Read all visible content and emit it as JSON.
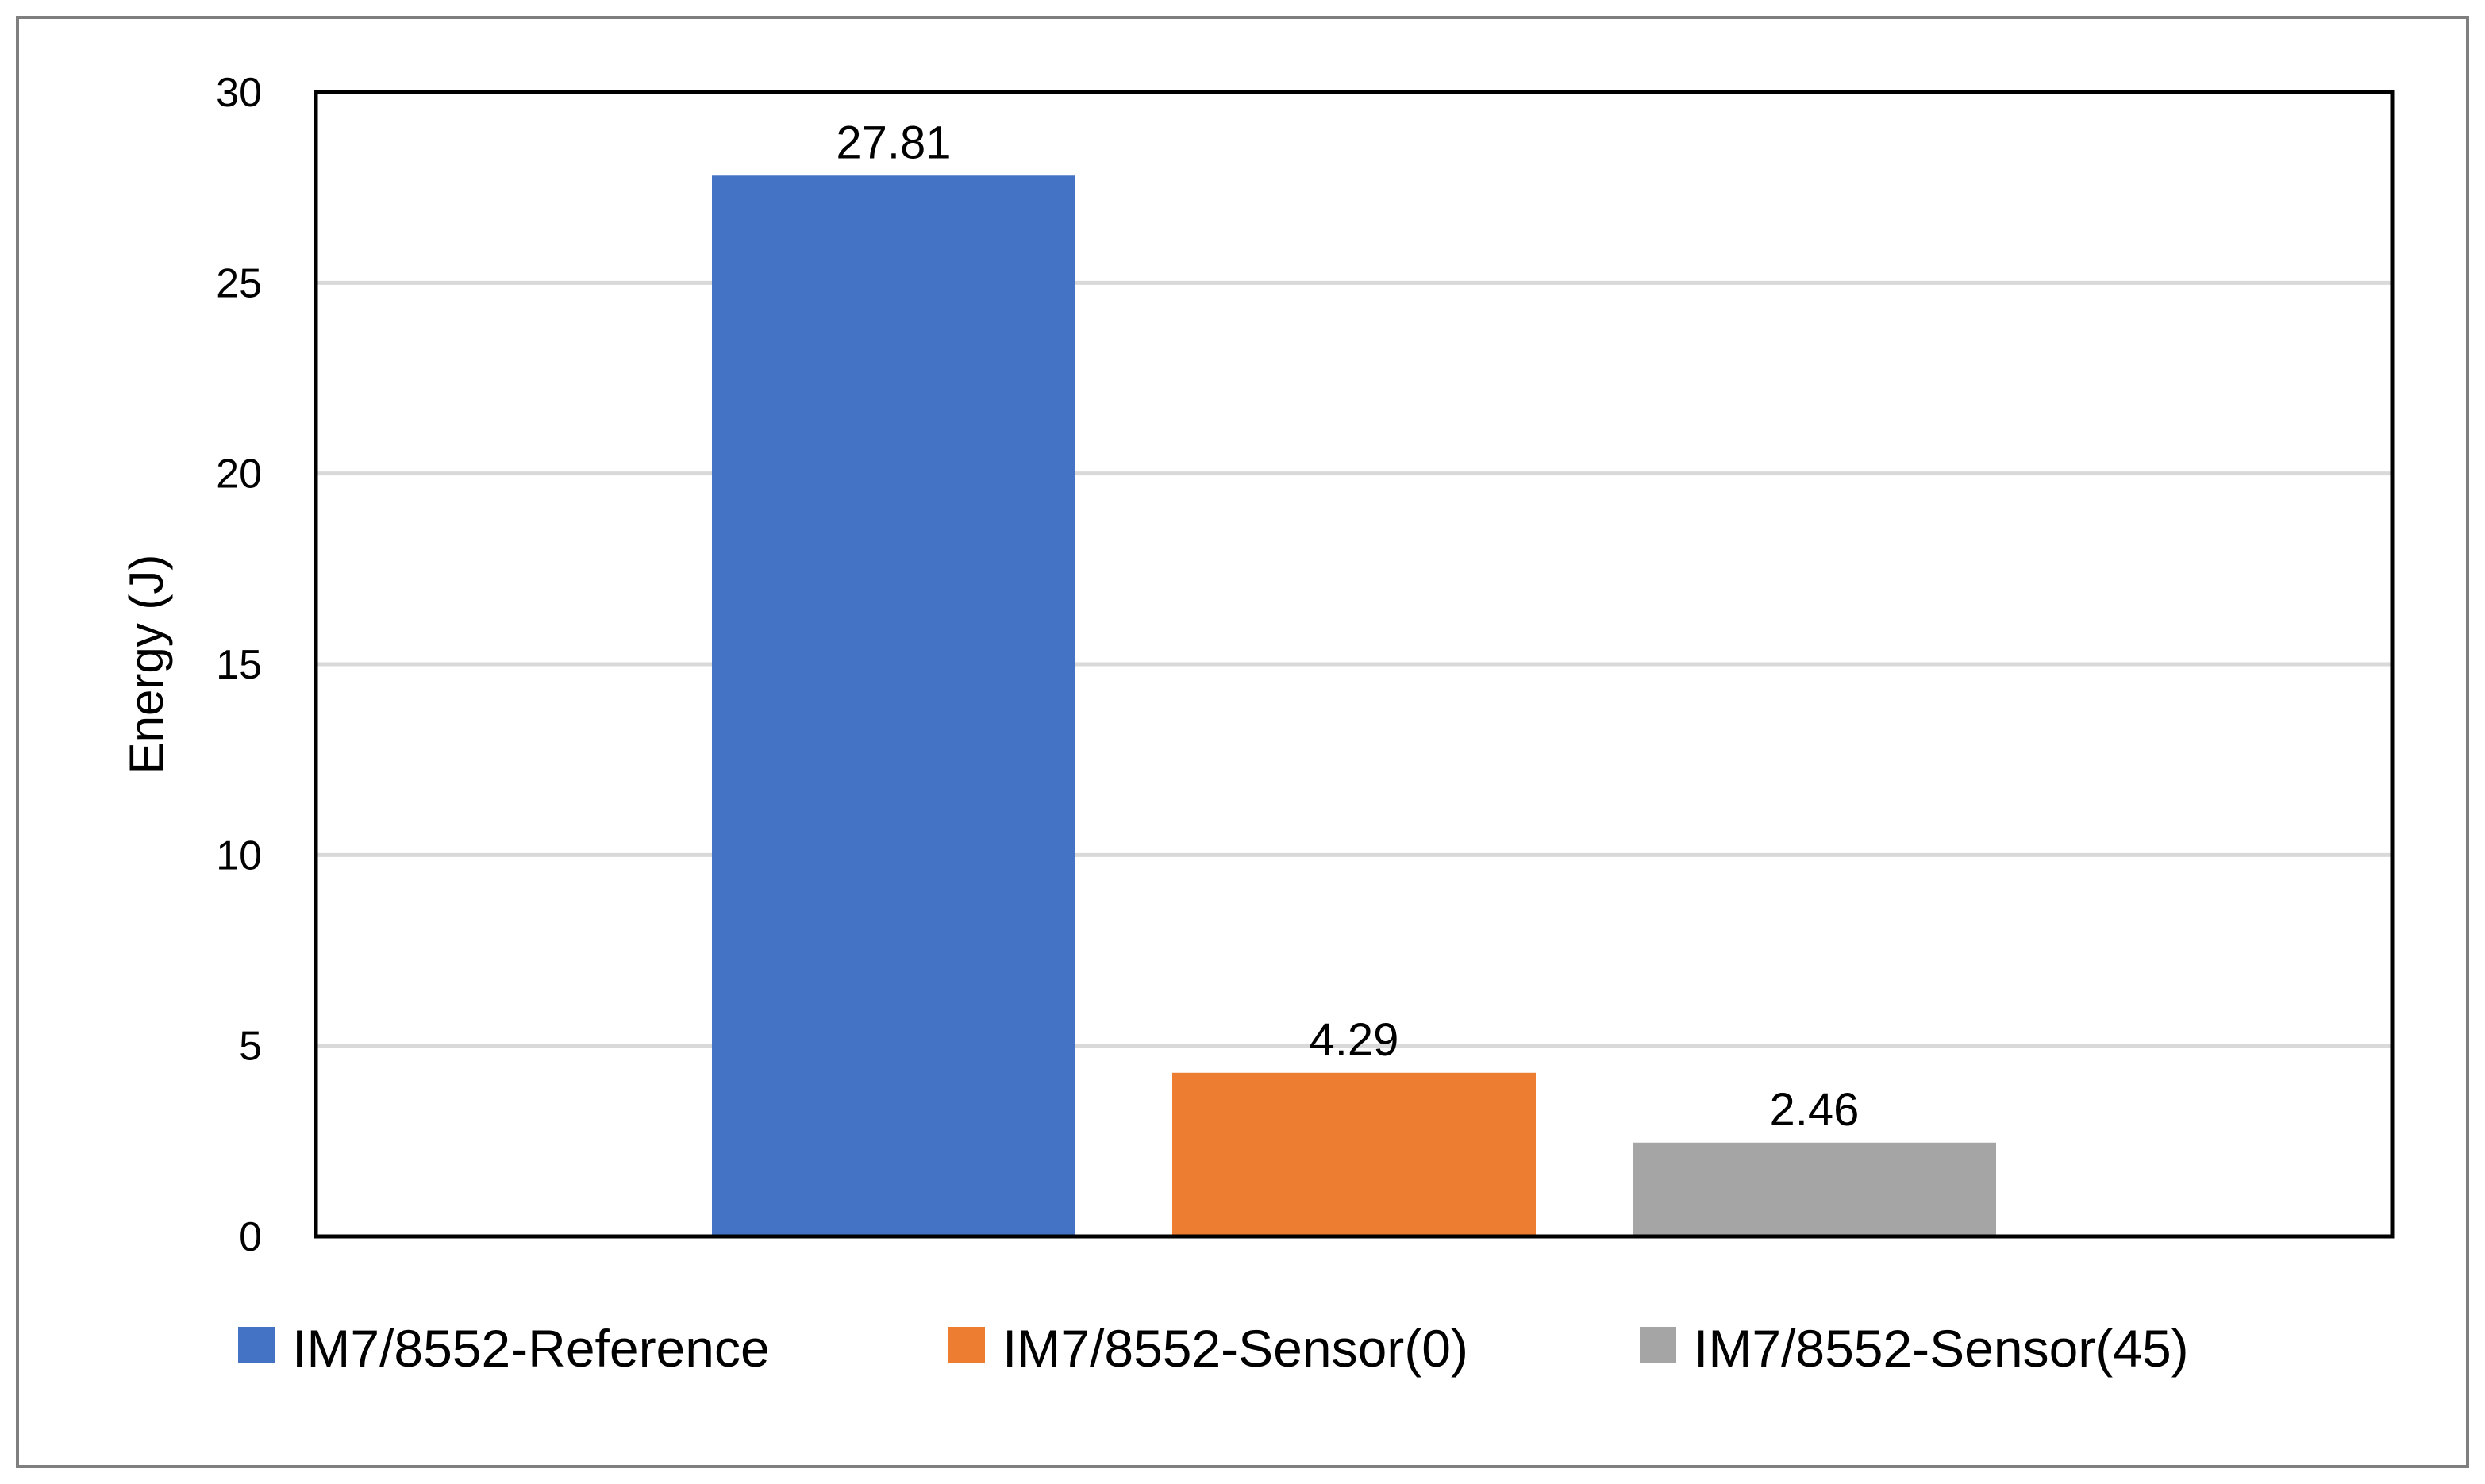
{
  "chart_data": {
    "type": "bar",
    "title": "",
    "xlabel": "",
    "ylabel": "Energy (J)",
    "ylim": [
      0,
      30
    ],
    "yticks": [
      0,
      5,
      10,
      15,
      20,
      25,
      30
    ],
    "grid": true,
    "legend": "bottom",
    "series": [
      {
        "name": "IM7/8552-Reference",
        "value": 27.81,
        "label": "27.81",
        "color": "#4472C4"
      },
      {
        "name": "IM7/8552-Sensor(0)",
        "value": 4.29,
        "label": "4.29",
        "color": "#ED7D31"
      },
      {
        "name": "IM7/8552-Sensor(45)",
        "value": 2.46,
        "label": "2.46",
        "color": "#A5A5A5"
      }
    ]
  }
}
